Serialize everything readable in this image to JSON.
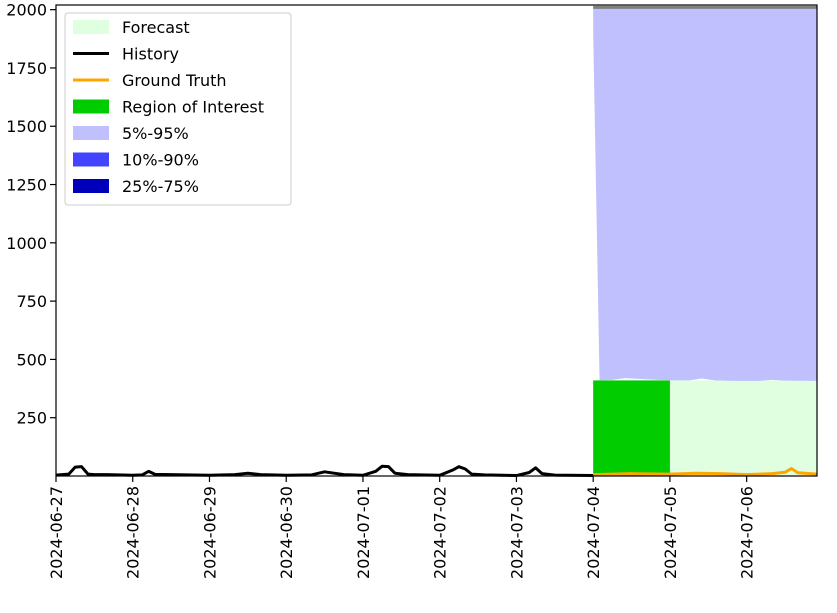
{
  "chart_data": {
    "type": "area",
    "title": "",
    "xlabel": "",
    "ylabel": "",
    "x_range": [
      "2024-06-27",
      "2024-07-06T22:00"
    ],
    "ylim": [
      0,
      2020
    ],
    "yticks": [
      250,
      500,
      750,
      1000,
      1250,
      1500,
      1750,
      2000
    ],
    "ytick_labels": [
      "250",
      "500",
      "750",
      "1000",
      "1250",
      "1500",
      "1750",
      "2000"
    ],
    "xticks": [
      "2024-06-27",
      "2024-06-28",
      "2024-06-29",
      "2024-06-30",
      "2024-07-01",
      "2024-07-02",
      "2024-07-03",
      "2024-07-04",
      "2024-07-05",
      "2024-07-06"
    ],
    "grid": false,
    "legend": {
      "position": "top-left",
      "entries": [
        {
          "label": "Forecast",
          "kind": "patch",
          "color": "#e0ffe0"
        },
        {
          "label": "History",
          "kind": "line",
          "color": "#000000"
        },
        {
          "label": "Ground Truth",
          "kind": "line",
          "color": "#ffa500"
        },
        {
          "label": "Region of Interest",
          "kind": "patch",
          "color": "#00cc00"
        },
        {
          "label": "5%-95%",
          "kind": "patch",
          "color": "#c0c0ff"
        },
        {
          "label": "10%-90%",
          "kind": "patch",
          "color": "#4444ff"
        },
        {
          "label": "25%-75%",
          "kind": "patch",
          "color": "#0000bb"
        }
      ]
    },
    "forecast_region": {
      "start": "2024-07-04",
      "end": "2024-07-06T22:00",
      "y_top": 410
    },
    "region_of_interest": {
      "start": "2024-07-04",
      "end": "2024-07-05",
      "y_top": 410
    },
    "band_5_95": {
      "x": [
        "2024-07-04T00:00",
        "2024-07-04T02:00",
        "2024-07-04T06:00",
        "2024-07-04T10:00",
        "2024-07-04T16:00",
        "2024-07-05T00:00",
        "2024-07-05T06:00",
        "2024-07-05T10:00",
        "2024-07-05T14:00",
        "2024-07-05T20:00",
        "2024-07-06T04:00",
        "2024-07-06T08:00",
        "2024-07-06T12:00",
        "2024-07-06T22:00"
      ],
      "lower": [
        1900,
        410,
        412,
        420,
        415,
        410,
        410,
        418,
        410,
        408,
        408,
        412,
        409,
        408
      ],
      "upper": [
        2010,
        2010,
        2010,
        2010,
        2010,
        2010,
        2010,
        2010,
        2010,
        2010,
        2010,
        2010,
        2010,
        2010
      ]
    },
    "history": {
      "x": [
        "2024-06-27T00:00",
        "2024-06-27T04:00",
        "2024-06-27T06:00",
        "2024-06-27T08:00",
        "2024-06-27T10:00",
        "2024-06-27T12:00",
        "2024-06-27T16:00",
        "2024-06-28T00:00",
        "2024-06-28T03:00",
        "2024-06-28T05:00",
        "2024-06-28T07:00",
        "2024-06-28T12:00",
        "2024-06-29T00:00",
        "2024-06-29T08:00",
        "2024-06-29T12:00",
        "2024-06-29T16:00",
        "2024-06-30T00:00",
        "2024-06-30T08:00",
        "2024-06-30T12:00",
        "2024-06-30T18:00",
        "2024-07-01T00:00",
        "2024-07-01T04:00",
        "2024-07-01T06:00",
        "2024-07-01T08:00",
        "2024-07-01T10:00",
        "2024-07-01T14:00",
        "2024-07-02T00:00",
        "2024-07-02T04:00",
        "2024-07-02T06:00",
        "2024-07-02T08:00",
        "2024-07-02T10:00",
        "2024-07-02T14:00",
        "2024-07-03T00:00",
        "2024-07-03T04:00",
        "2024-07-03T06:00",
        "2024-07-03T08:00",
        "2024-07-03T12:00",
        "2024-07-04T00:00"
      ],
      "y": [
        4,
        8,
        38,
        40,
        8,
        6,
        6,
        3,
        5,
        20,
        7,
        6,
        3,
        6,
        12,
        6,
        3,
        5,
        18,
        6,
        3,
        20,
        42,
        40,
        12,
        6,
        3,
        25,
        40,
        30,
        8,
        5,
        2,
        15,
        35,
        10,
        4,
        2
      ]
    },
    "ground_truth": {
      "x": [
        "2024-07-04T00:00",
        "2024-07-04T12:00",
        "2024-07-05T00:00",
        "2024-07-05T08:00",
        "2024-07-05T16:00",
        "2024-07-06T00:00",
        "2024-07-06T08:00",
        "2024-07-06T12:00",
        "2024-07-06T14:00",
        "2024-07-06T16:00",
        "2024-07-06T22:00"
      ],
      "y": [
        6,
        10,
        8,
        12,
        10,
        6,
        10,
        16,
        32,
        14,
        8
      ]
    }
  }
}
